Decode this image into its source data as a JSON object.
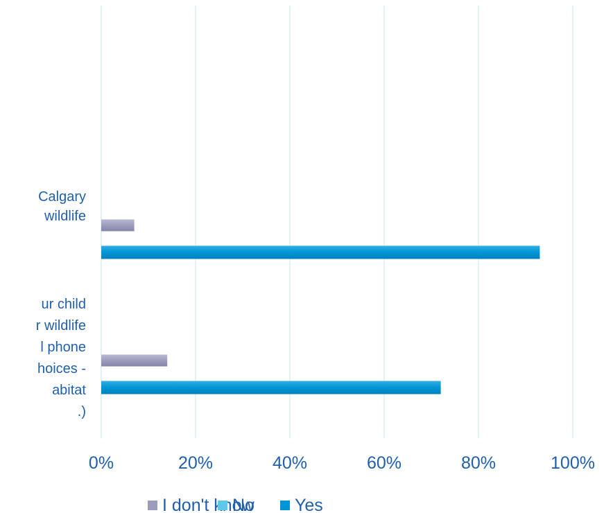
{
  "chart_data": {
    "type": "bar",
    "orientation": "horizontal",
    "title": "",
    "xlabel": "",
    "ylabel": "",
    "xlim": [
      0,
      100
    ],
    "x_ticks": [
      "0%",
      "20%",
      "40%",
      "60%",
      "80%",
      "100%"
    ],
    "grid": true,
    "legend_position": "bottom",
    "categories": [
      {
        "lines": [
          "Calgary",
          "wildlife"
        ]
      },
      {
        "lines": [
          "ur child",
          "r wildlife",
          "l phone",
          "hoices -",
          "abitat",
          ".)"
        ]
      }
    ],
    "series": [
      {
        "name": "I don't know",
        "color": "#9c9cbd",
        "values": [
          7,
          14
        ]
      },
      {
        "name": "No",
        "color": "#5ec8ea",
        "values": [
          0,
          0
        ]
      },
      {
        "name": "Yes",
        "color": "#0096d6",
        "values": [
          93,
          72
        ]
      }
    ]
  }
}
